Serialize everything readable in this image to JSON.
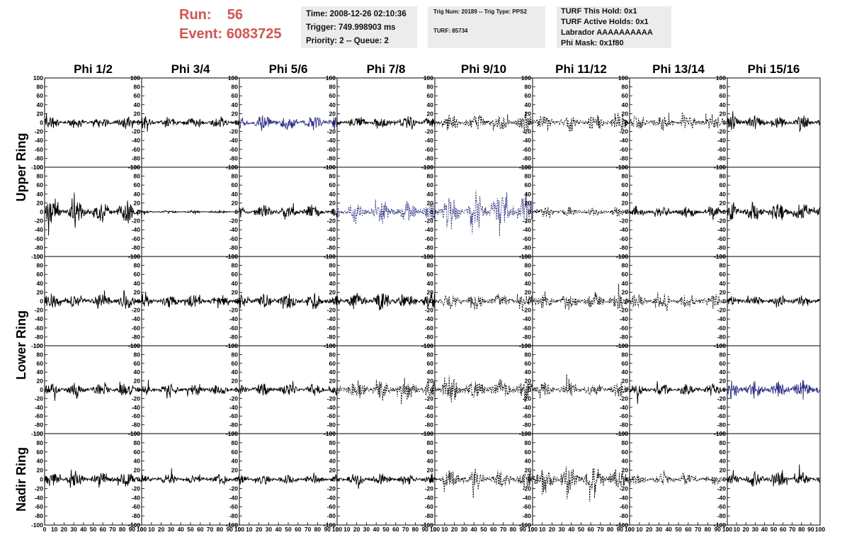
{
  "header": {
    "run_label": "Run:",
    "run_value": "56",
    "event_label": "Event:",
    "event_value": "6083725"
  },
  "time_box": {
    "time": "Time: 2008-12-26 02:10:36",
    "trigger": "Trigger: 749.998903 ms",
    "priority": "Priority: 2 -- Queue: 2"
  },
  "trig_box": {
    "trig": "Trig Num: 20189 -- Trig Type: PPS2",
    "turf": "TURF: 85734"
  },
  "turf_box": {
    "this_hold": "TURF This Hold: 0x1",
    "active_holds": "TURF Active Holds: 0x1",
    "labrador": "Labrador AAAAAAAAAA",
    "phi_mask": "Phi Mask: 0x1f80"
  },
  "chart_data": {
    "type": "line",
    "columns": [
      "Phi 1/2",
      "Phi 3/4",
      "Phi 5/6",
      "Phi 7/8",
      "Phi 9/10",
      "Phi 11/12",
      "Phi 13/14",
      "Phi 15/16"
    ],
    "row_titles": [
      "Upper Ring",
      "Lower Ring",
      "Nadir Ring"
    ],
    "panel_rows": 5,
    "ylim": [
      -100,
      100
    ],
    "y_ticks": [
      -100,
      -80,
      -60,
      -40,
      -20,
      0,
      20,
      40,
      60,
      80,
      100
    ],
    "xlim": [
      0,
      100
    ],
    "x_ticks": [
      0,
      10,
      20,
      30,
      40,
      50,
      60,
      70,
      80,
      90,
      100
    ],
    "colors": {
      "solid": "#000000",
      "highlight": "#2b2d8f"
    },
    "panels": [
      {
        "row": 0,
        "col": 0,
        "style": "solid",
        "color": "#000000",
        "amplitude": 12
      },
      {
        "row": 0,
        "col": 1,
        "style": "solid",
        "color": "#000000",
        "amplitude": 12
      },
      {
        "row": 0,
        "col": 2,
        "style": "solid",
        "color": "#2b2d8f",
        "amplitude": 16
      },
      {
        "row": 0,
        "col": 3,
        "style": "solid",
        "color": "#000000",
        "amplitude": 13
      },
      {
        "row": 0,
        "col": 4,
        "style": "dashed",
        "color": "#000000",
        "amplitude": 20
      },
      {
        "row": 0,
        "col": 5,
        "style": "dashed",
        "color": "#000000",
        "amplitude": 18
      },
      {
        "row": 0,
        "col": 6,
        "style": "dashed",
        "color": "#000000",
        "amplitude": 16
      },
      {
        "row": 0,
        "col": 7,
        "style": "solid",
        "color": "#000000",
        "amplitude": 15
      },
      {
        "row": 1,
        "col": 0,
        "style": "solid",
        "color": "#000000",
        "amplitude": 22
      },
      {
        "row": 1,
        "col": 1,
        "style": "solid",
        "color": "#000000",
        "amplitude": 3
      },
      {
        "row": 1,
        "col": 2,
        "style": "solid",
        "color": "#000000",
        "amplitude": 14
      },
      {
        "row": 1,
        "col": 3,
        "style": "dashed",
        "color": "#2b2d8f",
        "amplitude": 24
      },
      {
        "row": 1,
        "col": 4,
        "style": "dashed",
        "color": "#2b2d8f",
        "amplitude": 38
      },
      {
        "row": 1,
        "col": 5,
        "style": "dashed",
        "color": "#000000",
        "amplitude": 10
      },
      {
        "row": 1,
        "col": 6,
        "style": "solid",
        "color": "#000000",
        "amplitude": 12
      },
      {
        "row": 1,
        "col": 7,
        "style": "solid",
        "color": "#000000",
        "amplitude": 20
      },
      {
        "row": 2,
        "col": 0,
        "style": "solid",
        "color": "#000000",
        "amplitude": 15
      },
      {
        "row": 2,
        "col": 1,
        "style": "solid",
        "color": "#000000",
        "amplitude": 14
      },
      {
        "row": 2,
        "col": 2,
        "style": "solid",
        "color": "#000000",
        "amplitude": 17
      },
      {
        "row": 2,
        "col": 3,
        "style": "solid",
        "color": "#000000",
        "amplitude": 18
      },
      {
        "row": 2,
        "col": 4,
        "style": "dashed",
        "color": "#000000",
        "amplitude": 16
      },
      {
        "row": 2,
        "col": 5,
        "style": "dashed",
        "color": "#000000",
        "amplitude": 18
      },
      {
        "row": 2,
        "col": 6,
        "style": "dashed",
        "color": "#000000",
        "amplitude": 16
      },
      {
        "row": 2,
        "col": 7,
        "style": "solid",
        "color": "#000000",
        "amplitude": 12
      },
      {
        "row": 3,
        "col": 0,
        "style": "solid",
        "color": "#000000",
        "amplitude": 14
      },
      {
        "row": 3,
        "col": 1,
        "style": "solid",
        "color": "#000000",
        "amplitude": 12
      },
      {
        "row": 3,
        "col": 2,
        "style": "solid",
        "color": "#000000",
        "amplitude": 13
      },
      {
        "row": 3,
        "col": 3,
        "style": "dashed",
        "color": "#000000",
        "amplitude": 20
      },
      {
        "row": 3,
        "col": 4,
        "style": "dashed",
        "color": "#000000",
        "amplitude": 24
      },
      {
        "row": 3,
        "col": 5,
        "style": "dashed",
        "color": "#000000",
        "amplitude": 16
      },
      {
        "row": 3,
        "col": 6,
        "style": "solid",
        "color": "#000000",
        "amplitude": 12
      },
      {
        "row": 3,
        "col": 7,
        "style": "solid",
        "color": "#2b2d8f",
        "amplitude": 20
      },
      {
        "row": 4,
        "col": 0,
        "style": "solid",
        "color": "#000000",
        "amplitude": 15
      },
      {
        "row": 4,
        "col": 1,
        "style": "solid",
        "color": "#000000",
        "amplitude": 10
      },
      {
        "row": 4,
        "col": 2,
        "style": "solid",
        "color": "#000000",
        "amplitude": 10
      },
      {
        "row": 4,
        "col": 3,
        "style": "solid",
        "color": "#000000",
        "amplitude": 12
      },
      {
        "row": 4,
        "col": 4,
        "style": "dashed",
        "color": "#000000",
        "amplitude": 20
      },
      {
        "row": 4,
        "col": 5,
        "style": "dashed",
        "color": "#000000",
        "amplitude": 28
      },
      {
        "row": 4,
        "col": 6,
        "style": "dashed",
        "color": "#000000",
        "amplitude": 12
      },
      {
        "row": 4,
        "col": 7,
        "style": "solid",
        "color": "#000000",
        "amplitude": 15
      }
    ]
  }
}
